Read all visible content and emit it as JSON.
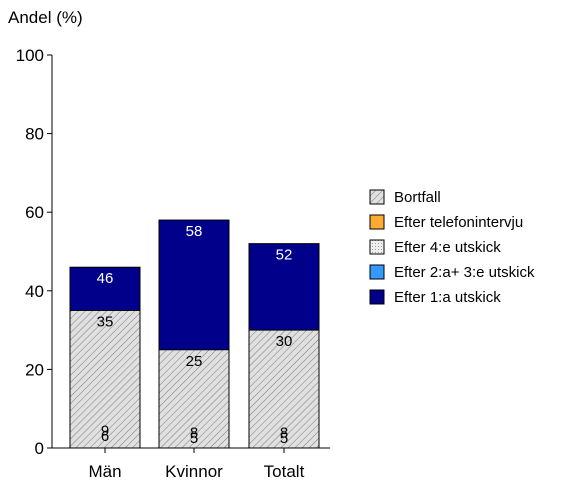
{
  "chart_data": {
    "type": "bar",
    "stacked": true,
    "ylabel": "Andel (%)",
    "xlabel": "",
    "ylim": [
      0,
      100
    ],
    "yticks": [
      0,
      20,
      40,
      60,
      80,
      100
    ],
    "categories": [
      "Män",
      "Kvinnor",
      "Totalt"
    ],
    "series": [
      {
        "name": "Efter 1:a utskick",
        "values": [
          46,
          58,
          52
        ],
        "color": "#00008B",
        "pattern": "solid",
        "labels": [
          "46",
          "58",
          "52"
        ],
        "label_color": "#ffffff"
      },
      {
        "name": "Efter 2:a+ 3:e utskick",
        "values": [
          6,
          5,
          5
        ],
        "color": "#3399FF",
        "pattern": "solid",
        "labels": [
          "6",
          "5",
          "5"
        ],
        "label_color": "#000000"
      },
      {
        "name": "Efter 4:e utskick",
        "values": [
          5,
          4,
          5
        ],
        "color": "#E6E6E6",
        "pattern": "dots",
        "labels": [
          "",
          "",
          ""
        ],
        "label_color": "#000000"
      },
      {
        "name": "Efter telefonintervju",
        "values": [
          9,
          8,
          8
        ],
        "color": "#FFAA33",
        "pattern": "solid",
        "labels": [
          "9",
          "8",
          "8"
        ],
        "label_color": "#000000"
      },
      {
        "name": "Bortfall",
        "values": [
          35,
          25,
          30
        ],
        "color": "#D9D9D9",
        "pattern": "hatch",
        "labels": [
          "35",
          "25",
          "30"
        ],
        "label_color": "#000000"
      }
    ],
    "legend_order": [
      "Bortfall",
      "Efter telefonintervju",
      "Efter 4:e utskick",
      "Efter 2:a+ 3:e utskick",
      "Efter 1:a utskick"
    ],
    "legend_position": "right",
    "grid": false
  }
}
